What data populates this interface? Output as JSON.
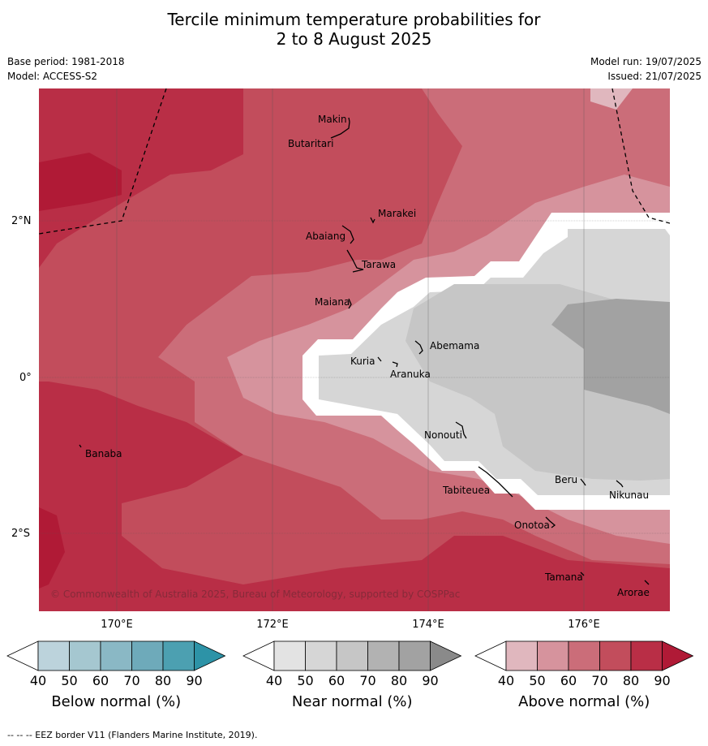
{
  "title_line1": "Tercile minimum temperature probabilities for",
  "title_line2": "2 to 8 August 2025",
  "base_period": "Base period: 1981-2018",
  "model": "Model: ACCESS-S2",
  "model_run": "Model run: 19/07/2025",
  "issued": "Issued: 21/07/2025",
  "copyright": "© Commonwealth of Australia 2025, Bureau of Meteorology, supported by COSPPac",
  "footnote": "-- -- -- EEZ border V11 (Flanders Marine Institute, 2019).",
  "lat_labels": [
    "2°N",
    "0°",
    "2°S"
  ],
  "lon_labels": [
    "170°E",
    "172°E",
    "174°E",
    "176°E"
  ],
  "places": [
    "Makin",
    "Butaritari",
    "Marakei",
    "Abaiang",
    "Tarawa",
    "Maiana",
    "Abemama",
    "Kuria",
    "Aranuka",
    "Banaba",
    "Nonouti",
    "Tabiteuea",
    "Beru",
    "Nikunau",
    "Onotoa",
    "Tamana",
    "Arorae"
  ],
  "colors": {
    "above": [
      "#e0b7be",
      "#d6939d",
      "#cb6d79",
      "#c24d5c",
      "#b92e46",
      "#b01a36"
    ],
    "near": [
      "#e3e3e3",
      "#d6d6d6",
      "#c6c6c6",
      "#b2b2b2",
      "#a2a2a2",
      "#8a8a8a"
    ],
    "below": [
      "#bcd3dc",
      "#a5c7d0",
      "#8ab8c5",
      "#6eaaba",
      "#4ca0b1",
      "#2d93a7"
    ]
  },
  "legend": {
    "ticks": [
      "40",
      "50",
      "60",
      "70",
      "80",
      "90"
    ],
    "bars": [
      {
        "label": "Below normal (%)",
        "category": "below"
      },
      {
        "label": "Near normal (%)",
        "category": "near"
      },
      {
        "label": "Above normal (%)",
        "category": "above"
      }
    ]
  }
}
